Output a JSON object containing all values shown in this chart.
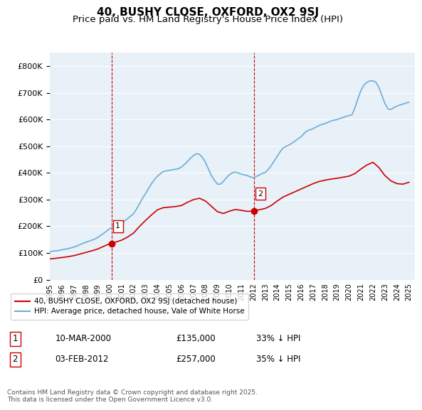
{
  "title_line1": "40, BUSHY CLOSE, OXFORD, OX2 9SJ",
  "title_line2": "Price paid vs. HM Land Registry's House Price Index (HPI)",
  "title_fontsize": 11,
  "subtitle_fontsize": 9.5,
  "background_color": "#ffffff",
  "plot_bg_color": "#e8f0f8",
  "grid_color": "#ffffff",
  "ylim": [
    0,
    850000
  ],
  "yticks": [
    0,
    100000,
    200000,
    300000,
    400000,
    500000,
    600000,
    700000,
    800000
  ],
  "xlim_start": 1995.0,
  "xlim_end": 2025.5,
  "xticks": [
    1995,
    1996,
    1997,
    1998,
    1999,
    2000,
    2001,
    2002,
    2003,
    2004,
    2005,
    2006,
    2007,
    2008,
    2009,
    2010,
    2011,
    2012,
    2013,
    2014,
    2015,
    2016,
    2017,
    2018,
    2019,
    2020,
    2021,
    2022,
    2023,
    2024,
    2025
  ],
  "sale1_date": 2000.19,
  "sale1_price": 135000,
  "sale1_label": "1",
  "sale2_date": 2012.09,
  "sale2_price": 257000,
  "sale2_label": "2",
  "hpi_color": "#6baed6",
  "sale_color": "#cc0000",
  "vline_color": "#cc0000",
  "legend_label_red": "40, BUSHY CLOSE, OXFORD, OX2 9SJ (detached house)",
  "legend_label_blue": "HPI: Average price, detached house, Vale of White Horse",
  "table_row1": [
    "1",
    "10-MAR-2000",
    "£135,000",
    "33% ↓ HPI"
  ],
  "table_row2": [
    "2",
    "03-FEB-2012",
    "£257,000",
    "35% ↓ HPI"
  ],
  "footnote": "Contains HM Land Registry data © Crown copyright and database right 2025.\nThis data is licensed under the Open Government Licence v3.0.",
  "hpi_data": {
    "years": [
      1995.0,
      1995.25,
      1995.5,
      1995.75,
      1996.0,
      1996.25,
      1996.5,
      1996.75,
      1997.0,
      1997.25,
      1997.5,
      1997.75,
      1998.0,
      1998.25,
      1998.5,
      1998.75,
      1999.0,
      1999.25,
      1999.5,
      1999.75,
      2000.0,
      2000.25,
      2000.5,
      2000.75,
      2001.0,
      2001.25,
      2001.5,
      2001.75,
      2002.0,
      2002.25,
      2002.5,
      2002.75,
      2003.0,
      2003.25,
      2003.5,
      2003.75,
      2004.0,
      2004.25,
      2004.5,
      2004.75,
      2005.0,
      2005.25,
      2005.5,
      2005.75,
      2006.0,
      2006.25,
      2006.5,
      2006.75,
      2007.0,
      2007.25,
      2007.5,
      2007.75,
      2008.0,
      2008.25,
      2008.5,
      2008.75,
      2009.0,
      2009.25,
      2009.5,
      2009.75,
      2010.0,
      2010.25,
      2010.5,
      2010.75,
      2011.0,
      2011.25,
      2011.5,
      2011.75,
      2012.0,
      2012.25,
      2012.5,
      2012.75,
      2013.0,
      2013.25,
      2013.5,
      2013.75,
      2014.0,
      2014.25,
      2014.5,
      2014.75,
      2015.0,
      2015.25,
      2015.5,
      2015.75,
      2016.0,
      2016.25,
      2016.5,
      2016.75,
      2017.0,
      2017.25,
      2017.5,
      2017.75,
      2018.0,
      2018.25,
      2018.5,
      2018.75,
      2019.0,
      2019.25,
      2019.5,
      2019.75,
      2020.0,
      2020.25,
      2020.5,
      2020.75,
      2021.0,
      2021.25,
      2021.5,
      2021.75,
      2022.0,
      2022.25,
      2022.5,
      2022.75,
      2023.0,
      2023.25,
      2023.5,
      2023.75,
      2024.0,
      2024.25,
      2024.5,
      2024.75,
      2025.0
    ],
    "values": [
      105000,
      107000,
      108000,
      109000,
      112000,
      114000,
      116000,
      119000,
      122000,
      126000,
      131000,
      136000,
      140000,
      144000,
      148000,
      152000,
      158000,
      166000,
      174000,
      182000,
      191000,
      198000,
      204000,
      208000,
      213000,
      220000,
      229000,
      238000,
      248000,
      265000,
      285000,
      305000,
      323000,
      342000,
      360000,
      376000,
      388000,
      398000,
      405000,
      408000,
      410000,
      412000,
      414000,
      416000,
      422000,
      432000,
      443000,
      455000,
      465000,
      472000,
      470000,
      458000,
      440000,
      415000,
      390000,
      373000,
      358000,
      358000,
      368000,
      382000,
      393000,
      401000,
      403000,
      400000,
      395000,
      393000,
      390000,
      385000,
      382000,
      387000,
      392000,
      398000,
      402000,
      413000,
      428000,
      445000,
      462000,
      480000,
      494000,
      500000,
      505000,
      512000,
      520000,
      528000,
      536000,
      548000,
      558000,
      562000,
      566000,
      572000,
      578000,
      582000,
      585000,
      590000,
      595000,
      598000,
      600000,
      604000,
      608000,
      612000,
      615000,
      618000,
      645000,
      680000,
      710000,
      730000,
      740000,
      745000,
      745000,
      740000,
      720000,
      690000,
      660000,
      640000,
      638000,
      645000,
      650000,
      655000,
      658000,
      662000,
      665000
    ]
  },
  "sale_hpi_data": {
    "years": [
      1995.0,
      1995.5,
      1996.0,
      1996.5,
      1997.0,
      1997.5,
      1998.0,
      1998.5,
      1999.0,
      1999.5,
      2000.0,
      2000.5,
      2001.0,
      2001.5,
      2002.0,
      2002.5,
      2003.0,
      2003.5,
      2004.0,
      2004.5,
      2005.0,
      2005.5,
      2006.0,
      2006.5,
      2007.0,
      2007.5,
      2008.0,
      2008.5,
      2009.0,
      2009.5,
      2010.0,
      2010.5,
      2011.0,
      2011.5,
      2012.0,
      2012.5,
      2013.0,
      2013.5,
      2014.0,
      2014.5,
      2015.0,
      2015.5,
      2016.0,
      2016.5,
      2017.0,
      2017.5,
      2018.0,
      2018.5,
      2019.0,
      2019.5,
      2020.0,
      2020.5,
      2021.0,
      2021.5,
      2022.0,
      2022.5,
      2023.0,
      2023.5,
      2024.0,
      2024.5,
      2025.0
    ],
    "values": [
      78000,
      80000,
      83000,
      86000,
      90000,
      96000,
      102000,
      108000,
      115000,
      125000,
      135000,
      141000,
      148000,
      160000,
      175000,
      200000,
      222000,
      243000,
      262000,
      270000,
      272000,
      274000,
      278000,
      290000,
      300000,
      305000,
      295000,
      275000,
      255000,
      248000,
      257000,
      263000,
      260000,
      256000,
      257000,
      262000,
      267000,
      278000,
      295000,
      310000,
      320000,
      330000,
      340000,
      350000,
      360000,
      368000,
      373000,
      377000,
      380000,
      384000,
      388000,
      398000,
      415000,
      430000,
      440000,
      420000,
      390000,
      370000,
      360000,
      358000,
      365000
    ]
  }
}
